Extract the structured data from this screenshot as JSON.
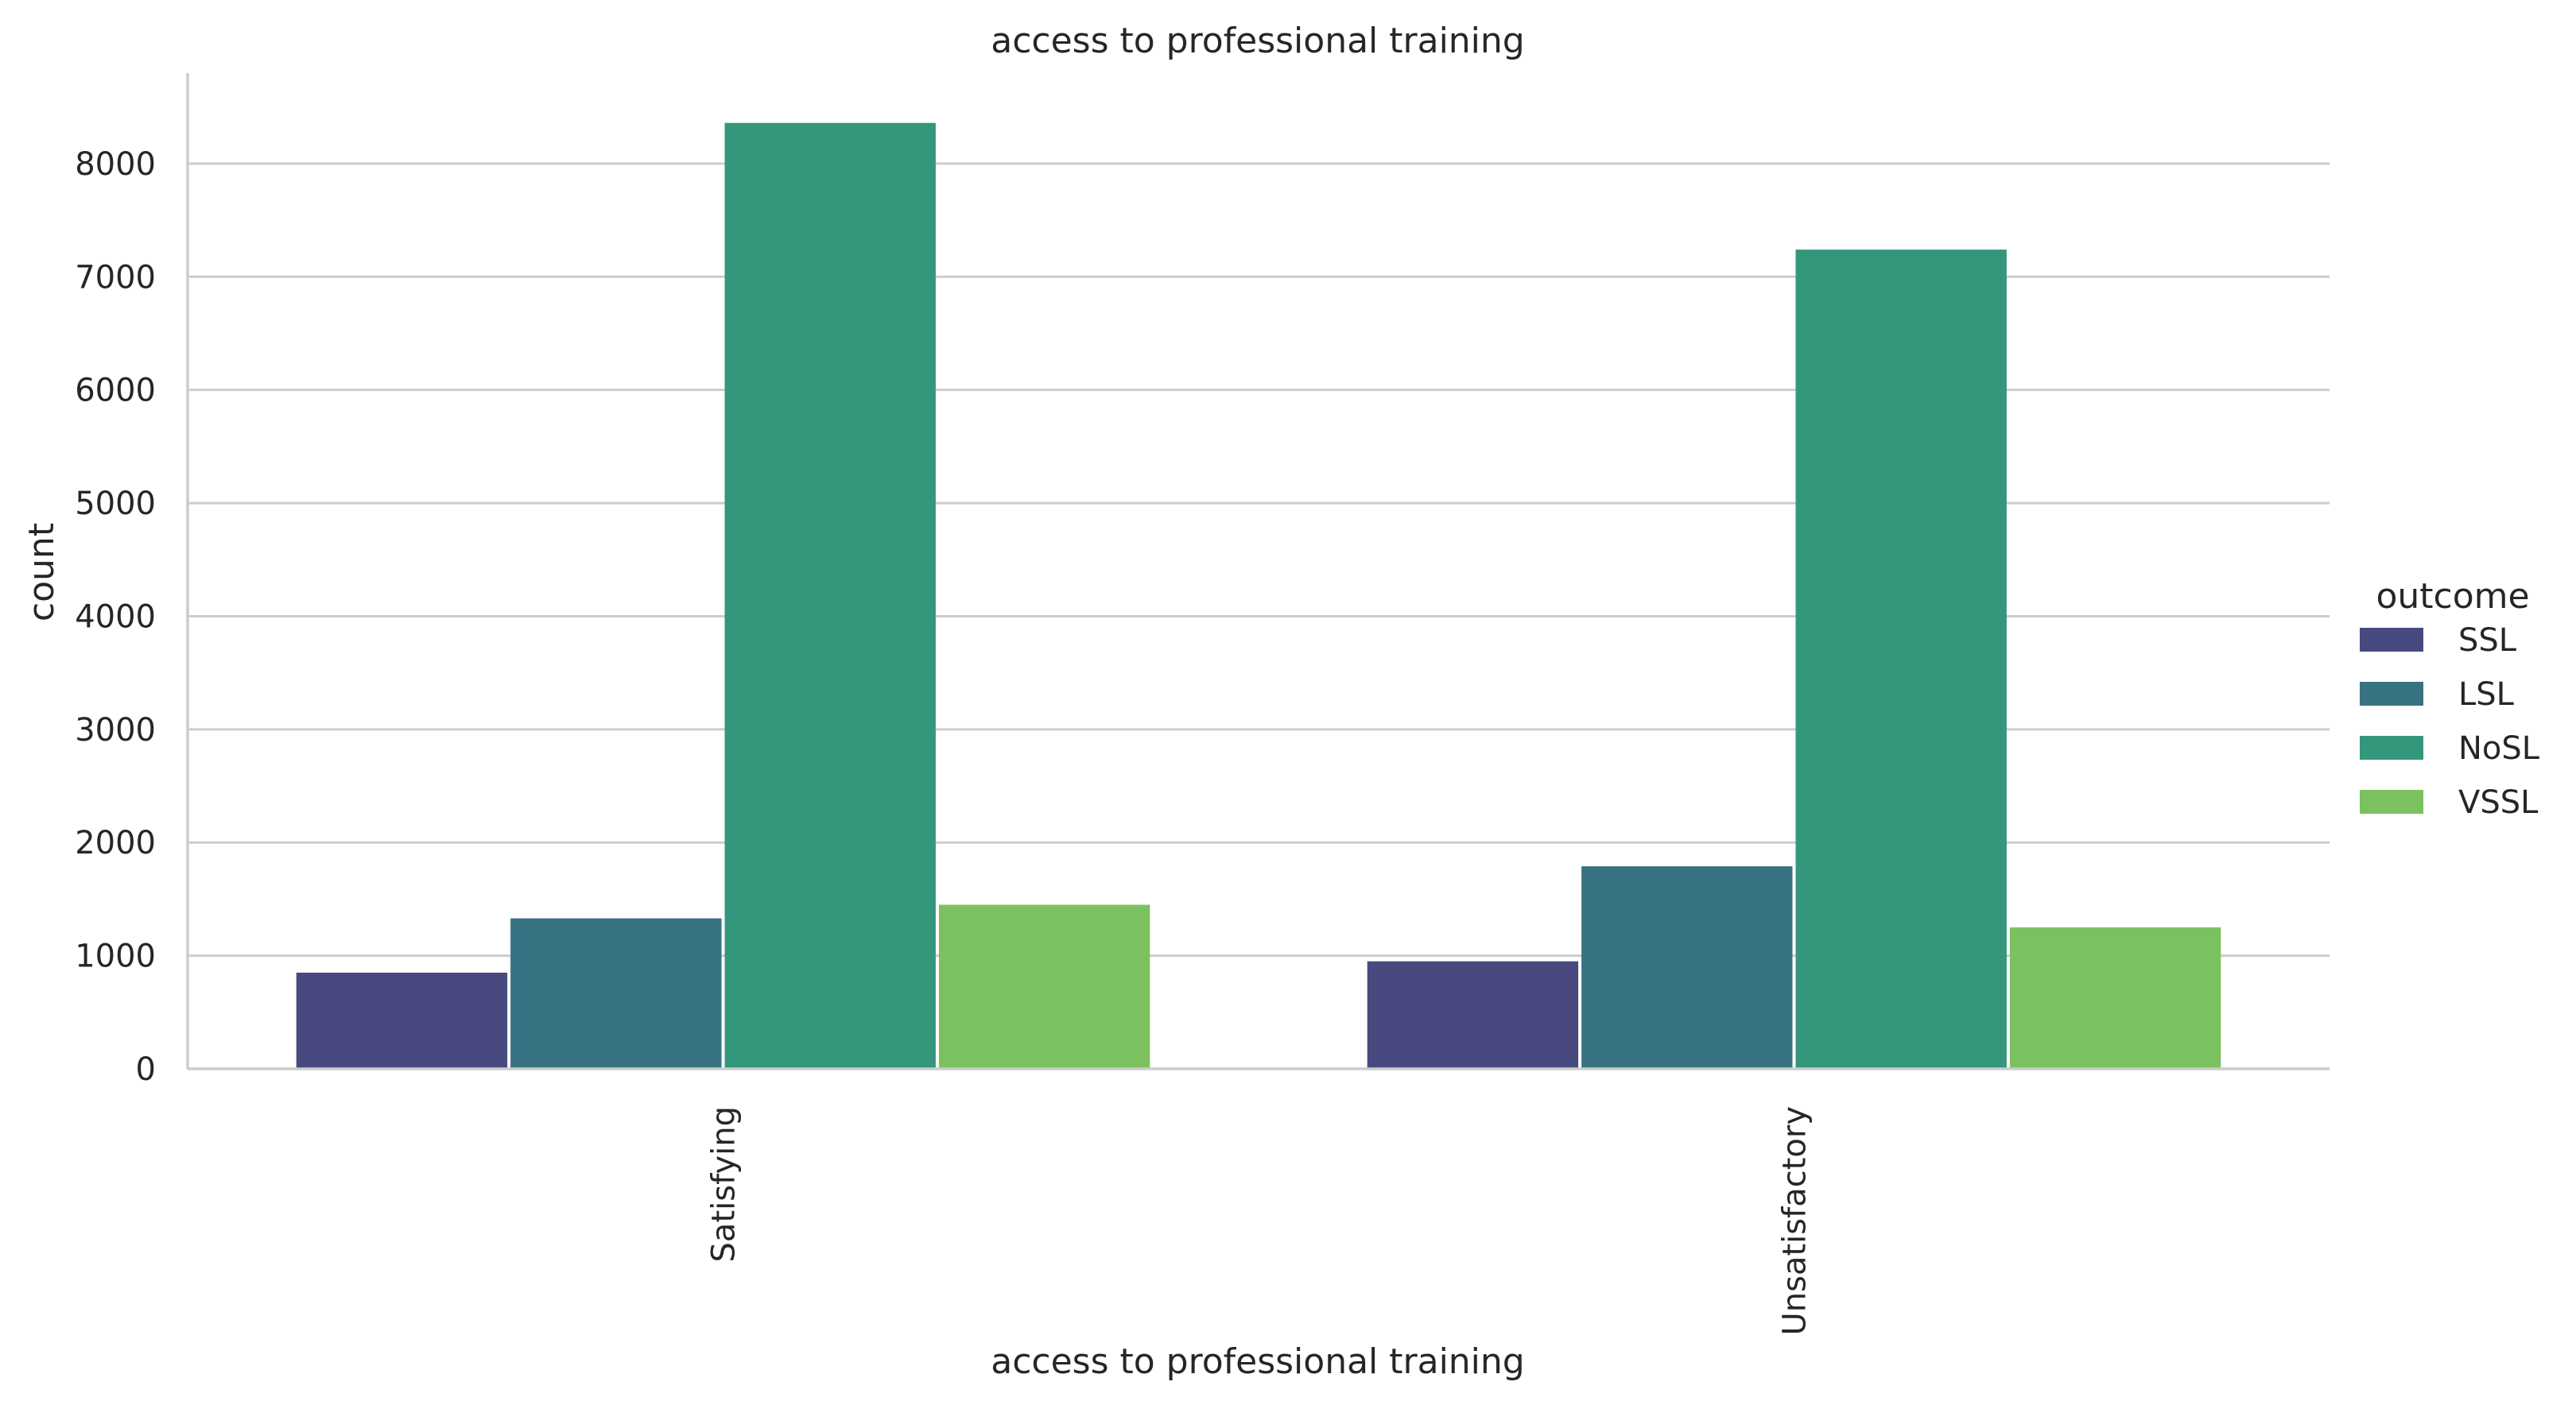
{
  "chart_data": {
    "type": "bar",
    "title": "access to professional training",
    "xlabel": "access to professional training",
    "ylabel": "count",
    "categories": [
      "Satisfying",
      "Unsatisfactory"
    ],
    "series": [
      {
        "name": "SSL",
        "values": [
          850,
          950
        ],
        "color": "#48497f"
      },
      {
        "name": "LSL",
        "values": [
          1330,
          1790
        ],
        "color": "#377283"
      },
      {
        "name": "NoSL",
        "values": [
          8360,
          7240
        ],
        "color": "#34977b"
      },
      {
        "name": "VSSL",
        "values": [
          1450,
          1250
        ],
        "color": "#7cc160"
      }
    ],
    "ylim": [
      0,
      8800
    ],
    "yticks": [
      0,
      1000,
      2000,
      3000,
      4000,
      5000,
      6000,
      7000,
      8000
    ],
    "grid": true,
    "legend": {
      "title": "outcome",
      "placement": "right"
    }
  }
}
